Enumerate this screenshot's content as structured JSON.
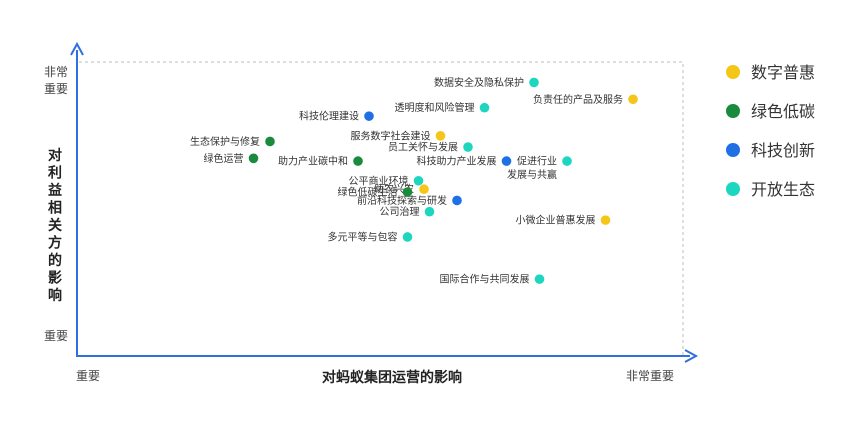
{
  "chart_data": {
    "type": "scatter",
    "xlabel": "对蚂蚁集团运营的影响",
    "ylabel": "对利益相关方的影响",
    "x_tick_low": "重要",
    "x_tick_high": "非常重要",
    "y_tick_low": "重要",
    "y_tick_high": "非常重要",
    "xlim": [
      0,
      100
    ],
    "ylim": [
      0,
      100
    ],
    "grid": false,
    "legend_position": "right",
    "series": [
      {
        "name": "数字普惠",
        "color": "#F5C518",
        "points": [
          {
            "label": "负责任的产品及服务",
            "x": 94,
            "y": 91
          },
          {
            "label": "服务数字社会建设",
            "x": 59,
            "y": 78
          },
          {
            "label": "助农兴农",
            "x": 56,
            "y": 59
          },
          {
            "label": "小微企业普惠发展",
            "x": 89,
            "y": 48
          }
        ]
      },
      {
        "name": "绿色低碳",
        "color": "#1A8A3C",
        "points": [
          {
            "label": "生态保护与修复",
            "x": 28,
            "y": 76
          },
          {
            "label": "绿色运营",
            "x": 25,
            "y": 70
          },
          {
            "label": "助力产业碳中和",
            "x": 44,
            "y": 69
          },
          {
            "label": "绿色低碳生活",
            "x": 53,
            "y": 58
          }
        ]
      },
      {
        "name": "科技创新",
        "color": "#1F6FE5",
        "points": [
          {
            "label": "科技伦理建设",
            "x": 46,
            "y": 85
          },
          {
            "label": "科技助力产业发展",
            "x": 71,
            "y": 69
          },
          {
            "label": "前沿科技探索与研发",
            "x": 62,
            "y": 55
          }
        ]
      },
      {
        "name": "开放生态",
        "color": "#1DD6C0",
        "points": [
          {
            "label": "数据安全及隐私保护",
            "x": 76,
            "y": 97
          },
          {
            "label": "透明度和风险管理",
            "x": 67,
            "y": 88
          },
          {
            "label": "员工关怀与发展",
            "x": 64,
            "y": 74
          },
          {
            "label": "促进行业",
            "label2": "发展与共赢",
            "x": 82,
            "y": 69
          },
          {
            "label": "公平商业环境",
            "x": 55,
            "y": 62
          },
          {
            "label": "公司治理",
            "x": 57,
            "y": 51
          },
          {
            "label": "多元平等与包容",
            "x": 53,
            "y": 42
          },
          {
            "label": "国际合作与共同发展",
            "x": 77,
            "y": 27
          }
        ]
      }
    ]
  }
}
